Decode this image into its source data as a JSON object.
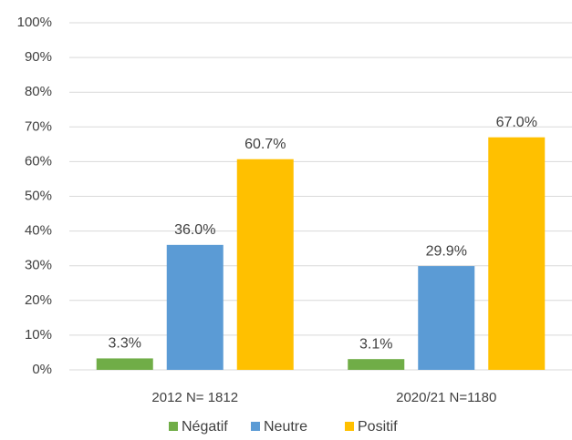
{
  "chart_data": {
    "type": "bar",
    "categories": [
      "2012 N= 1812",
      "2020/21 N=1180"
    ],
    "series": [
      {
        "name": "Négatif",
        "color": "#70ad47",
        "values": [
          3.3,
          3.1
        ],
        "value_labels": [
          "3.3%",
          "3.1%"
        ]
      },
      {
        "name": "Neutre",
        "color": "#5b9bd5",
        "values": [
          36.0,
          29.9
        ],
        "value_labels": [
          "36.0%",
          "29.9%"
        ]
      },
      {
        "name": "Positif",
        "color": "#ffc000",
        "values": [
          60.7,
          67.0
        ],
        "value_labels": [
          "60.7%",
          "67.0%"
        ]
      }
    ],
    "ylim": [
      0,
      100
    ],
    "yticks": [
      {
        "value": 0,
        "label": "0%"
      },
      {
        "value": 10,
        "label": "10%"
      },
      {
        "value": 20,
        "label": "20%"
      },
      {
        "value": 30,
        "label": "30%"
      },
      {
        "value": 40,
        "label": "40%"
      },
      {
        "value": 50,
        "label": "50%"
      },
      {
        "value": 60,
        "label": "60%"
      },
      {
        "value": 70,
        "label": "70%"
      },
      {
        "value": 80,
        "label": "80%"
      },
      {
        "value": 90,
        "label": "90%"
      },
      {
        "value": 100,
        "label": "100%"
      }
    ],
    "grid": true,
    "legend": "bottom"
  }
}
